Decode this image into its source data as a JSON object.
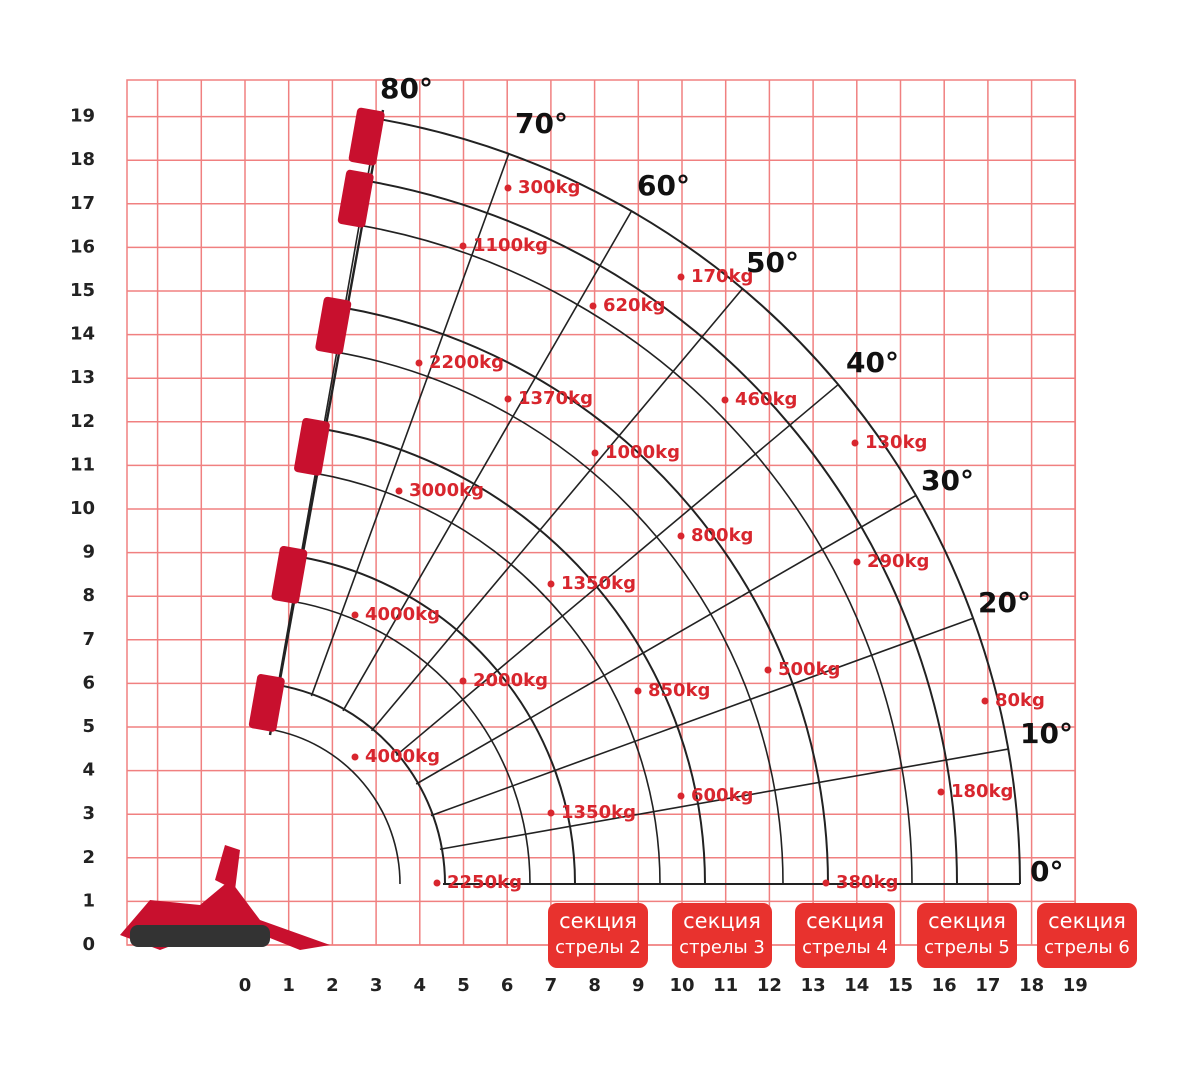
{
  "y_axis": {
    "labels": [
      "0",
      "1",
      "2",
      "3",
      "4",
      "5",
      "6",
      "7",
      "8",
      "9",
      "10",
      "11",
      "12",
      "13",
      "14",
      "15",
      "16",
      "17",
      "18",
      "19"
    ]
  },
  "x_axis": {
    "labels": [
      "0",
      "1",
      "2",
      "3",
      "4",
      "5",
      "6",
      "7",
      "8",
      "9",
      "10",
      "11",
      "12",
      "13",
      "14",
      "15",
      "16",
      "17",
      "18",
      "19"
    ]
  },
  "angles": [
    "80°",
    "70°",
    "60°",
    "50°",
    "40°",
    "30°",
    "20°",
    "10°",
    "0°"
  ],
  "loads": [
    "300kg",
    "1100kg",
    "170kg",
    "620kg",
    "2200kg",
    "1370kg",
    "460kg",
    "1000kg",
    "130kg",
    "3000kg",
    "800kg",
    "290kg",
    "1350kg",
    "4000kg",
    "500kg",
    "2000kg",
    "850kg",
    "80kg",
    "4000kg",
    "1350kg",
    "600kg",
    "180kg",
    "2250kg",
    "380kg"
  ],
  "sections": [
    {
      "line1": "секция",
      "line2": "стрелы 2"
    },
    {
      "line1": "секция",
      "line2": "стрелы 3"
    },
    {
      "line1": "секция",
      "line2": "стрелы 4"
    },
    {
      "line1": "секция",
      "line2": "стрелы 5"
    },
    {
      "line1": "секция",
      "line2": "стрелы 6"
    }
  ]
}
